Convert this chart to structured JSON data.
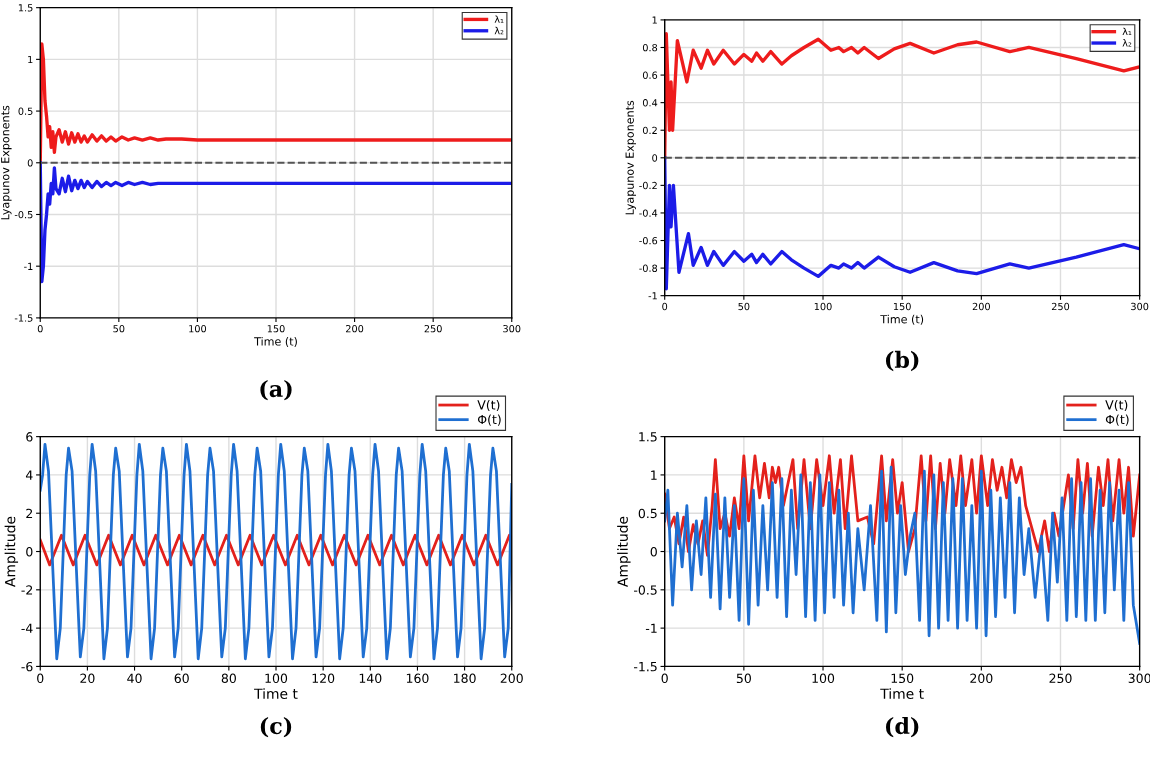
{
  "chart_data": [
    {
      "type": "line",
      "xlabel": "Time (t)",
      "ylabel": "Lyapunov Exponents",
      "annotations": [
        "(a)"
      ],
      "xlim": [
        0,
        300
      ],
      "ylim": [
        -1.5,
        1.5
      ],
      "xticks": [
        0,
        50,
        100,
        150,
        200,
        250,
        300
      ],
      "yticks": [
        -1.5,
        -1,
        -0.5,
        0,
        0.5,
        1,
        1.5
      ],
      "grid": true,
      "legend": "top right",
      "line_style": "solid",
      "ref_lines": [
        {
          "axis": "y",
          "value": 0,
          "color": "#555555",
          "line_style": "dashed"
        }
      ],
      "series": [
        {
          "name": "λ₁",
          "color": "#ee1c1c",
          "x": [
            0,
            0.5,
            1,
            2,
            3,
            4,
            5,
            6,
            7,
            8,
            9,
            10,
            12,
            14,
            16,
            18,
            20,
            22,
            24,
            26,
            28,
            30,
            33,
            36,
            39,
            42,
            45,
            48,
            52,
            56,
            60,
            65,
            70,
            75,
            80,
            90,
            100,
            150,
            200,
            250,
            300
          ],
          "values": [
            0,
            0.6,
            1.15,
            1.0,
            0.6,
            0.45,
            0.25,
            0.35,
            0.15,
            0.3,
            0.1,
            0.25,
            0.32,
            0.2,
            0.3,
            0.18,
            0.29,
            0.2,
            0.28,
            0.2,
            0.26,
            0.2,
            0.27,
            0.21,
            0.26,
            0.21,
            0.25,
            0.21,
            0.25,
            0.22,
            0.24,
            0.22,
            0.24,
            0.22,
            0.23,
            0.23,
            0.22,
            0.22,
            0.22,
            0.22,
            0.22
          ]
        },
        {
          "name": "λ₂",
          "color": "#1c1ce8",
          "x": [
            0,
            0.5,
            1,
            2,
            3,
            4,
            5,
            6,
            7,
            8,
            9,
            10,
            12,
            14,
            16,
            18,
            20,
            22,
            24,
            26,
            28,
            30,
            33,
            36,
            39,
            42,
            45,
            48,
            52,
            56,
            60,
            65,
            70,
            75,
            80,
            90,
            100,
            150,
            200,
            250,
            300
          ],
          "values": [
            0,
            -0.6,
            -1.15,
            -1.0,
            -0.65,
            -0.5,
            -0.3,
            -0.4,
            -0.2,
            -0.3,
            -0.05,
            -0.25,
            -0.3,
            -0.15,
            -0.28,
            -0.13,
            -0.27,
            -0.17,
            -0.25,
            -0.17,
            -0.24,
            -0.18,
            -0.24,
            -0.18,
            -0.23,
            -0.19,
            -0.22,
            -0.19,
            -0.22,
            -0.19,
            -0.21,
            -0.19,
            -0.21,
            -0.2,
            -0.2,
            -0.2,
            -0.2,
            -0.2,
            -0.2,
            -0.2,
            -0.2
          ]
        }
      ]
    },
    {
      "type": "line",
      "xlabel": "Time (t)",
      "ylabel": "Lyapunov Exponents",
      "annotations": [
        "(b)"
      ],
      "xlim": [
        0,
        300
      ],
      "ylim": [
        -1,
        1
      ],
      "xticks": [
        0,
        50,
        100,
        150,
        200,
        250,
        300
      ],
      "yticks": [
        -1,
        -0.8,
        -0.6,
        -0.4,
        -0.2,
        0,
        0.2,
        0.4,
        0.6,
        0.8,
        1
      ],
      "grid": true,
      "legend": "top right",
      "line_style": "solid",
      "ref_lines": [
        {
          "axis": "y",
          "value": 0,
          "color": "#555555",
          "line_style": "dashed"
        }
      ],
      "series": [
        {
          "name": "λ₁",
          "color": "#ee1c1c",
          "x": [
            0,
            1,
            3,
            4,
            5,
            8,
            14,
            18,
            23,
            27,
            31,
            37,
            44,
            50,
            55,
            58,
            62,
            67,
            74,
            80,
            88,
            97,
            105,
            110,
            113,
            118,
            122,
            126,
            135,
            145,
            155,
            170,
            185,
            197,
            218,
            230,
            260,
            290,
            300
          ],
          "values": [
            0,
            0.9,
            0.2,
            0.55,
            0.2,
            0.85,
            0.55,
            0.78,
            0.65,
            0.78,
            0.68,
            0.78,
            0.68,
            0.75,
            0.7,
            0.76,
            0.7,
            0.77,
            0.68,
            0.74,
            0.8,
            0.86,
            0.78,
            0.8,
            0.77,
            0.8,
            0.76,
            0.8,
            0.72,
            0.79,
            0.83,
            0.76,
            0.82,
            0.84,
            0.77,
            0.8,
            0.72,
            0.63,
            0.66
          ]
        },
        {
          "name": "λ₂",
          "color": "#1c1ce8",
          "x": [
            0,
            1,
            3,
            4,
            5.5,
            9,
            15,
            18,
            23,
            27,
            31,
            37,
            44,
            50,
            55,
            58,
            62,
            67,
            74,
            80,
            88,
            97,
            105,
            110,
            113,
            118,
            122,
            126,
            135,
            145,
            155,
            170,
            185,
            197,
            218,
            230,
            260,
            290,
            300
          ],
          "values": [
            0,
            -0.95,
            -0.2,
            -0.5,
            -0.2,
            -0.83,
            -0.55,
            -0.78,
            -0.65,
            -0.78,
            -0.68,
            -0.78,
            -0.68,
            -0.75,
            -0.7,
            -0.76,
            -0.7,
            -0.77,
            -0.68,
            -0.74,
            -0.8,
            -0.86,
            -0.78,
            -0.8,
            -0.77,
            -0.8,
            -0.76,
            -0.8,
            -0.72,
            -0.79,
            -0.83,
            -0.76,
            -0.82,
            -0.84,
            -0.77,
            -0.8,
            -0.72,
            -0.63,
            -0.66
          ]
        }
      ]
    },
    {
      "type": "line",
      "xlabel": "Time t",
      "ylabel": "Amplitude",
      "annotations": [
        "(c)"
      ],
      "xlim": [
        0,
        200
      ],
      "ylim": [
        -6,
        6
      ],
      "xticks": [
        0,
        20,
        40,
        60,
        80,
        100,
        120,
        140,
        160,
        180,
        200
      ],
      "yticks": [
        -6,
        -4,
        -2,
        0,
        2,
        4,
        6
      ],
      "grid": true,
      "legend": "top right",
      "line_style": "solid",
      "series": [
        {
          "name": "V(t)",
          "color": "#e3211c",
          "x": [
            0,
            4,
            9,
            14,
            19,
            24,
            29,
            34,
            39,
            44,
            49,
            54,
            59,
            64,
            69,
            74,
            79,
            84,
            89,
            94,
            99,
            104,
            109,
            114,
            119,
            124,
            129,
            134,
            139,
            144,
            149,
            154,
            159,
            164,
            169,
            174,
            179,
            184,
            189,
            194,
            199,
            200
          ],
          "values": [
            0.6,
            -0.7,
            0.85,
            -0.7,
            0.85,
            -0.7,
            0.85,
            -0.7,
            0.85,
            -0.7,
            0.85,
            -0.7,
            0.85,
            -0.7,
            0.85,
            -0.7,
            0.85,
            -0.7,
            0.85,
            -0.7,
            0.85,
            -0.7,
            0.85,
            -0.7,
            0.85,
            -0.7,
            0.85,
            -0.7,
            0.85,
            -0.7,
            0.85,
            -0.7,
            0.85,
            -0.7,
            0.85,
            -0.7,
            0.85,
            -0.7,
            0.85,
            -0.7,
            0.85,
            0.7
          ]
        },
        {
          "name": "Φ(t)",
          "color": "#1f6fd1",
          "x": [
            0,
            1,
            2,
            3.5,
            5,
            6.5,
            7,
            8.5,
            11,
            12,
            13.5,
            15,
            16.5,
            17,
            18.5,
            21,
            22,
            23.5,
            25,
            26.5,
            27,
            28.5,
            31,
            32,
            33.5,
            35,
            36.5,
            37,
            38.5,
            41,
            42,
            43.5,
            45,
            46.5,
            47,
            48.5,
            51,
            52,
            53.5,
            55,
            56.5,
            57,
            58.5,
            61,
            62,
            63.5,
            65,
            66.5,
            67,
            68.5,
            71,
            72,
            73.5,
            75,
            76.5,
            77,
            78.5,
            81,
            82,
            83.5,
            85,
            86.5,
            87,
            88.5,
            91,
            92,
            93.5,
            95,
            96.5,
            97,
            98.5,
            101,
            102,
            103.5,
            105,
            106.5,
            107,
            108.5,
            111,
            112,
            113.5,
            115,
            116.5,
            117,
            118.5,
            121,
            122,
            123.5,
            125,
            126.5,
            127,
            128.5,
            131,
            132,
            133.5,
            135,
            136.5,
            137,
            138.5,
            141,
            142,
            143.5,
            145,
            146.5,
            147,
            148.5,
            151,
            152,
            153.5,
            155,
            156.5,
            157,
            158.5,
            161,
            162,
            163.5,
            165,
            166.5,
            167,
            168.5,
            171,
            172,
            173.5,
            175,
            176.5,
            177,
            178.5,
            181,
            182,
            183.5,
            185,
            186.5,
            187,
            188.5,
            191,
            192,
            193.5,
            195,
            196.5,
            197,
            198.5,
            200
          ],
          "values": [
            3.2,
            4.0,
            5.6,
            4.2,
            0,
            -4.2,
            -5.6,
            -4.0,
            4.0,
            5.4,
            4.2,
            0,
            -4.2,
            -5.5,
            -4.0,
            4.0,
            5.6,
            4.2,
            0,
            -4.2,
            -5.6,
            -4.0,
            4.0,
            5.4,
            4.2,
            0,
            -4.2,
            -5.5,
            -4.0,
            4.0,
            5.6,
            4.2,
            0,
            -4.2,
            -5.6,
            -4.0,
            4.0,
            5.4,
            4.2,
            0,
            -4.2,
            -5.5,
            -4.0,
            4.0,
            5.6,
            4.2,
            0,
            -4.2,
            -5.6,
            -4.0,
            4.0,
            5.4,
            4.2,
            0,
            -4.2,
            -5.5,
            -4.0,
            4.0,
            5.6,
            4.2,
            0,
            -4.2,
            -5.6,
            -4.0,
            4.0,
            5.4,
            4.2,
            0,
            -4.2,
            -5.5,
            -4.0,
            4.0,
            5.6,
            4.2,
            0,
            -4.2,
            -5.6,
            -4.0,
            4.0,
            5.4,
            4.2,
            0,
            -4.2,
            -5.5,
            -4.0,
            4.0,
            5.6,
            4.2,
            0,
            -4.2,
            -5.6,
            -4.0,
            4.0,
            5.4,
            4.2,
            0,
            -4.2,
            -5.5,
            -4.0,
            4.0,
            5.6,
            4.2,
            0,
            -4.2,
            -5.6,
            -4.0,
            4.0,
            5.4,
            4.2,
            0,
            -4.2,
            -5.5,
            -4.0,
            4.0,
            5.6,
            4.2,
            0,
            -4.2,
            -5.6,
            -4.0,
            4.0,
            5.4,
            4.2,
            0,
            -4.2,
            -5.5,
            -4.0,
            4.0,
            5.6,
            4.2,
            0,
            -4.2,
            -5.6,
            -4.0,
            4.0,
            5.4,
            4.2,
            0,
            -4.2,
            -5.5,
            -4.0,
            3.5
          ]
        }
      ]
    },
    {
      "type": "line",
      "xlabel": "Time t",
      "ylabel": "Amplitude",
      "annotations": [
        "(d)"
      ],
      "xlim": [
        0,
        300
      ],
      "ylim": [
        -1.5,
        1.5
      ],
      "xticks": [
        0,
        50,
        100,
        150,
        200,
        250,
        300
      ],
      "yticks": [
        -1.5,
        -1,
        -0.5,
        0,
        0.5,
        1,
        1.5
      ],
      "grid": true,
      "legend": "top right",
      "line_style": "solid",
      "series": [
        {
          "name": "V(t)",
          "color": "#e3211c",
          "x": [
            0,
            3,
            6,
            9,
            12,
            15,
            18,
            21,
            24,
            27,
            30,
            32,
            35,
            38,
            41,
            44,
            47,
            50,
            53,
            57,
            60,
            63,
            66,
            68,
            70,
            72,
            75,
            78,
            81,
            84,
            88,
            92,
            96,
            100,
            104,
            107,
            111,
            114,
            118,
            122,
            128,
            132,
            137,
            140,
            144,
            147,
            150,
            154,
            158,
            162,
            165,
            168,
            171,
            174,
            177,
            180,
            184,
            187,
            190,
            194,
            197,
            200,
            204,
            207,
            210,
            213,
            216,
            219,
            222,
            225,
            228,
            232,
            236,
            240,
            243,
            246,
            249,
            252,
            255,
            258,
            261,
            264,
            267,
            270,
            274,
            277,
            280,
            283,
            287,
            290,
            293,
            296,
            300
          ],
          "values": [
            0.75,
            0.3,
            0.45,
            0.1,
            0.45,
            0.0,
            0.35,
            0.1,
            0.4,
            -0.05,
            0.6,
            1.2,
            0.3,
            0.5,
            0.2,
            0.7,
            0.3,
            1.25,
            0.4,
            1.25,
            0.7,
            1.15,
            0.7,
            1.1,
            0.9,
            1.1,
            0.6,
            0.9,
            1.2,
            0.3,
            1.2,
            0.3,
            1.2,
            0.6,
            1.25,
            0.5,
            1.2,
            0.3,
            1.25,
            0.4,
            0.45,
            0.1,
            1.25,
            0.4,
            1.2,
            0.5,
            0.9,
            0.0,
            0.3,
            1.25,
            0.4,
            1.25,
            0.3,
            1.15,
            0.5,
            1.2,
            0.6,
            1.25,
            0.6,
            1.2,
            0.5,
            1.25,
            0.6,
            1.2,
            0.8,
            1.1,
            0.7,
            1.2,
            0.9,
            1.1,
            0.6,
            0.3,
            0.0,
            0.4,
            0.0,
            0.5,
            0.2,
            0.6,
            1.0,
            0.3,
            1.2,
            0.5,
            1.15,
            0.2,
            1.1,
            0.6,
            1.2,
            0.4,
            1.2,
            0.5,
            1.1,
            0.2,
            1.0
          ]
        },
        {
          "name": "Φ(t)",
          "color": "#1f6fd1",
          "x": [
            0,
            2,
            5,
            8,
            11,
            14,
            17,
            20,
            23,
            26,
            29,
            32,
            35,
            38,
            41,
            44,
            47,
            50,
            53,
            56,
            59,
            62,
            65,
            68,
            71,
            74,
            77,
            80,
            83,
            86,
            89,
            92,
            95,
            98,
            101,
            104,
            107,
            110,
            113,
            116,
            119,
            122,
            126,
            130,
            134,
            137,
            140,
            143,
            146,
            149,
            152,
            155,
            158,
            161,
            164,
            167,
            170,
            173,
            176,
            179,
            182,
            185,
            188,
            191,
            194,
            197,
            200,
            203,
            206,
            209,
            212,
            215,
            218,
            221,
            224,
            227,
            230,
            234,
            238,
            242,
            245,
            248,
            251,
            254,
            257,
            260,
            263,
            266,
            269,
            272,
            275,
            278,
            281,
            284,
            287,
            290,
            293,
            296,
            300
          ],
          "values": [
            0.4,
            0.8,
            -0.7,
            0.5,
            -0.2,
            0.6,
            -0.5,
            0.4,
            -0.3,
            0.7,
            -0.6,
            0.75,
            -0.75,
            0.7,
            -0.6,
            0.6,
            -0.9,
            0.95,
            -0.95,
            0.8,
            -0.7,
            0.6,
            -0.5,
            0.9,
            -0.6,
            0.95,
            -0.85,
            0.8,
            -0.3,
            1.0,
            -0.85,
            0.9,
            -0.9,
            1.0,
            -0.8,
            0.9,
            -0.6,
            0.8,
            -0.7,
            0.5,
            -0.8,
            0.3,
            -0.5,
            0.6,
            -0.9,
            1.05,
            -1.05,
            1.1,
            -0.8,
            0.6,
            -0.3,
            0.2,
            0.5,
            -0.9,
            1.05,
            -1.1,
            1.0,
            -1.0,
            0.9,
            -0.9,
            0.95,
            -1.0,
            0.95,
            -0.9,
            0.6,
            -1.0,
            1.05,
            -1.1,
            0.8,
            -0.85,
            0.7,
            -0.6,
            0.9,
            -0.8,
            0.7,
            -0.3,
            0.3,
            -0.6,
            0.2,
            -0.9,
            0.5,
            -0.4,
            0.7,
            -0.9,
            0.95,
            -0.85,
            0.9,
            -0.9,
            0.95,
            -0.9,
            0.8,
            -0.8,
            0.9,
            -0.5,
            0.8,
            -0.9,
            0.9,
            -0.7,
            -1.2
          ]
        }
      ]
    }
  ]
}
